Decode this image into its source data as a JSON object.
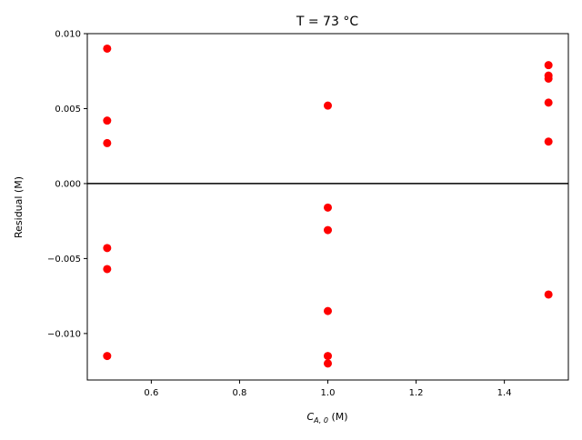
{
  "chart_data": {
    "type": "scatter",
    "title": "T = 73 °C",
    "xlabel_main": "C",
    "xlabel_sub": "A, 0",
    "xlabel_unit": " (M)",
    "ylabel": "Residual (M)",
    "xlim": [
      0.455,
      1.545
    ],
    "ylim": [
      -0.0131,
      0.01
    ],
    "xticks": [
      {
        "value": 0.6,
        "label": "0.6"
      },
      {
        "value": 0.8,
        "label": "0.8"
      },
      {
        "value": 1.0,
        "label": "1.0"
      },
      {
        "value": 1.2,
        "label": "1.2"
      },
      {
        "value": 1.4,
        "label": "1.4"
      }
    ],
    "yticks": [
      {
        "value": 0.01,
        "label": "0.010"
      },
      {
        "value": 0.005,
        "label": "0.005"
      },
      {
        "value": 0.0,
        "label": "0.000"
      },
      {
        "value": -0.005,
        "label": "−0.005"
      },
      {
        "value": -0.01,
        "label": "−0.010"
      }
    ],
    "reference_line": {
      "y": 0.0,
      "color": "#000000"
    },
    "grid": false,
    "point_color": "#ff0000",
    "points": [
      {
        "x": 0.5,
        "y": 0.009
      },
      {
        "x": 0.5,
        "y": 0.0042
      },
      {
        "x": 0.5,
        "y": 0.0027
      },
      {
        "x": 0.5,
        "y": -0.0043
      },
      {
        "x": 0.5,
        "y": -0.0057
      },
      {
        "x": 0.5,
        "y": -0.0115
      },
      {
        "x": 1.0,
        "y": 0.0052
      },
      {
        "x": 1.0,
        "y": -0.0016
      },
      {
        "x": 1.0,
        "y": -0.0031
      },
      {
        "x": 1.0,
        "y": -0.0085
      },
      {
        "x": 1.0,
        "y": -0.0115
      },
      {
        "x": 1.0,
        "y": -0.012
      },
      {
        "x": 1.5,
        "y": 0.0079
      },
      {
        "x": 1.5,
        "y": 0.0072
      },
      {
        "x": 1.5,
        "y": 0.007
      },
      {
        "x": 1.5,
        "y": 0.0054
      },
      {
        "x": 1.5,
        "y": 0.0028
      },
      {
        "x": 1.5,
        "y": -0.0074
      }
    ]
  }
}
